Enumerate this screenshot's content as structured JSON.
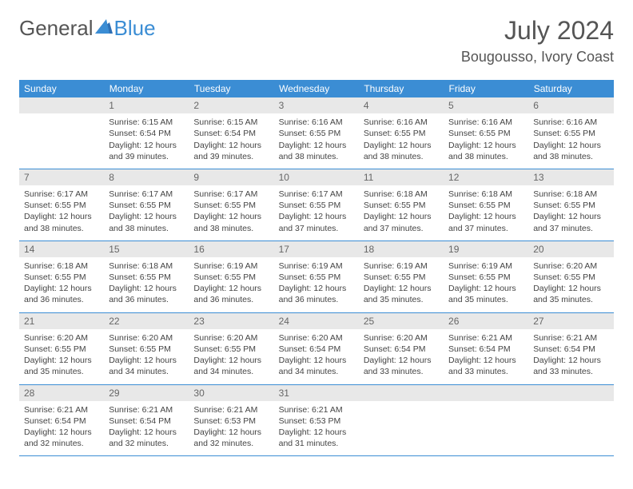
{
  "logo": {
    "part1": "General",
    "part2": "Blue"
  },
  "title": "July 2024",
  "location": "Bougousso, Ivory Coast",
  "colors": {
    "header_bg": "#3b8dd4",
    "header_text": "#ffffff",
    "daynum_bg": "#e8e8e8",
    "border": "#3b8dd4",
    "body_text": "#444444",
    "title_text": "#555555"
  },
  "weekdays": [
    "Sunday",
    "Monday",
    "Tuesday",
    "Wednesday",
    "Thursday",
    "Friday",
    "Saturday"
  ],
  "weeks": [
    [
      null,
      {
        "n": "1",
        "sr": "Sunrise: 6:15 AM",
        "ss": "Sunset: 6:54 PM",
        "dl": "Daylight: 12 hours and 39 minutes."
      },
      {
        "n": "2",
        "sr": "Sunrise: 6:15 AM",
        "ss": "Sunset: 6:54 PM",
        "dl": "Daylight: 12 hours and 39 minutes."
      },
      {
        "n": "3",
        "sr": "Sunrise: 6:16 AM",
        "ss": "Sunset: 6:55 PM",
        "dl": "Daylight: 12 hours and 38 minutes."
      },
      {
        "n": "4",
        "sr": "Sunrise: 6:16 AM",
        "ss": "Sunset: 6:55 PM",
        "dl": "Daylight: 12 hours and 38 minutes."
      },
      {
        "n": "5",
        "sr": "Sunrise: 6:16 AM",
        "ss": "Sunset: 6:55 PM",
        "dl": "Daylight: 12 hours and 38 minutes."
      },
      {
        "n": "6",
        "sr": "Sunrise: 6:16 AM",
        "ss": "Sunset: 6:55 PM",
        "dl": "Daylight: 12 hours and 38 minutes."
      }
    ],
    [
      {
        "n": "7",
        "sr": "Sunrise: 6:17 AM",
        "ss": "Sunset: 6:55 PM",
        "dl": "Daylight: 12 hours and 38 minutes."
      },
      {
        "n": "8",
        "sr": "Sunrise: 6:17 AM",
        "ss": "Sunset: 6:55 PM",
        "dl": "Daylight: 12 hours and 38 minutes."
      },
      {
        "n": "9",
        "sr": "Sunrise: 6:17 AM",
        "ss": "Sunset: 6:55 PM",
        "dl": "Daylight: 12 hours and 38 minutes."
      },
      {
        "n": "10",
        "sr": "Sunrise: 6:17 AM",
        "ss": "Sunset: 6:55 PM",
        "dl": "Daylight: 12 hours and 37 minutes."
      },
      {
        "n": "11",
        "sr": "Sunrise: 6:18 AM",
        "ss": "Sunset: 6:55 PM",
        "dl": "Daylight: 12 hours and 37 minutes."
      },
      {
        "n": "12",
        "sr": "Sunrise: 6:18 AM",
        "ss": "Sunset: 6:55 PM",
        "dl": "Daylight: 12 hours and 37 minutes."
      },
      {
        "n": "13",
        "sr": "Sunrise: 6:18 AM",
        "ss": "Sunset: 6:55 PM",
        "dl": "Daylight: 12 hours and 37 minutes."
      }
    ],
    [
      {
        "n": "14",
        "sr": "Sunrise: 6:18 AM",
        "ss": "Sunset: 6:55 PM",
        "dl": "Daylight: 12 hours and 36 minutes."
      },
      {
        "n": "15",
        "sr": "Sunrise: 6:18 AM",
        "ss": "Sunset: 6:55 PM",
        "dl": "Daylight: 12 hours and 36 minutes."
      },
      {
        "n": "16",
        "sr": "Sunrise: 6:19 AM",
        "ss": "Sunset: 6:55 PM",
        "dl": "Daylight: 12 hours and 36 minutes."
      },
      {
        "n": "17",
        "sr": "Sunrise: 6:19 AM",
        "ss": "Sunset: 6:55 PM",
        "dl": "Daylight: 12 hours and 36 minutes."
      },
      {
        "n": "18",
        "sr": "Sunrise: 6:19 AM",
        "ss": "Sunset: 6:55 PM",
        "dl": "Daylight: 12 hours and 35 minutes."
      },
      {
        "n": "19",
        "sr": "Sunrise: 6:19 AM",
        "ss": "Sunset: 6:55 PM",
        "dl": "Daylight: 12 hours and 35 minutes."
      },
      {
        "n": "20",
        "sr": "Sunrise: 6:20 AM",
        "ss": "Sunset: 6:55 PM",
        "dl": "Daylight: 12 hours and 35 minutes."
      }
    ],
    [
      {
        "n": "21",
        "sr": "Sunrise: 6:20 AM",
        "ss": "Sunset: 6:55 PM",
        "dl": "Daylight: 12 hours and 35 minutes."
      },
      {
        "n": "22",
        "sr": "Sunrise: 6:20 AM",
        "ss": "Sunset: 6:55 PM",
        "dl": "Daylight: 12 hours and 34 minutes."
      },
      {
        "n": "23",
        "sr": "Sunrise: 6:20 AM",
        "ss": "Sunset: 6:55 PM",
        "dl": "Daylight: 12 hours and 34 minutes."
      },
      {
        "n": "24",
        "sr": "Sunrise: 6:20 AM",
        "ss": "Sunset: 6:54 PM",
        "dl": "Daylight: 12 hours and 34 minutes."
      },
      {
        "n": "25",
        "sr": "Sunrise: 6:20 AM",
        "ss": "Sunset: 6:54 PM",
        "dl": "Daylight: 12 hours and 33 minutes."
      },
      {
        "n": "26",
        "sr": "Sunrise: 6:21 AM",
        "ss": "Sunset: 6:54 PM",
        "dl": "Daylight: 12 hours and 33 minutes."
      },
      {
        "n": "27",
        "sr": "Sunrise: 6:21 AM",
        "ss": "Sunset: 6:54 PM",
        "dl": "Daylight: 12 hours and 33 minutes."
      }
    ],
    [
      {
        "n": "28",
        "sr": "Sunrise: 6:21 AM",
        "ss": "Sunset: 6:54 PM",
        "dl": "Daylight: 12 hours and 32 minutes."
      },
      {
        "n": "29",
        "sr": "Sunrise: 6:21 AM",
        "ss": "Sunset: 6:54 PM",
        "dl": "Daylight: 12 hours and 32 minutes."
      },
      {
        "n": "30",
        "sr": "Sunrise: 6:21 AM",
        "ss": "Sunset: 6:53 PM",
        "dl": "Daylight: 12 hours and 32 minutes."
      },
      {
        "n": "31",
        "sr": "Sunrise: 6:21 AM",
        "ss": "Sunset: 6:53 PM",
        "dl": "Daylight: 12 hours and 31 minutes."
      },
      null,
      null,
      null
    ]
  ]
}
